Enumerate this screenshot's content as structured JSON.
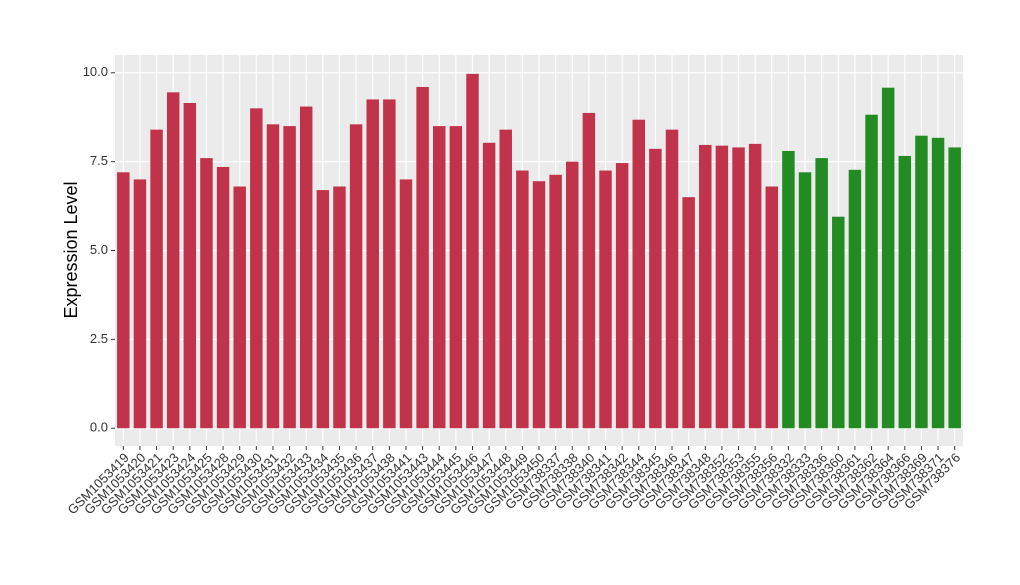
{
  "chart_data": {
    "type": "bar",
    "y_label": "Expression Level",
    "categories": [
      "GSM1053419",
      "GSM1053420",
      "GSM1053421",
      "GSM1053423",
      "GSM1053424",
      "GSM1053425",
      "GSM1053428",
      "GSM1053429",
      "GSM1053430",
      "GSM1053431",
      "GSM1053432",
      "GSM1053433",
      "GSM1053434",
      "GSM1053435",
      "GSM1053436",
      "GSM1053437",
      "GSM1053438",
      "GSM1053441",
      "GSM1053443",
      "GSM1053444",
      "GSM1053445",
      "GSM1053446",
      "GSM1053447",
      "GSM1053448",
      "GSM1053449",
      "GSM1053450",
      "GSM738337",
      "GSM738338",
      "GSM738340",
      "GSM738341",
      "GSM738342",
      "GSM738344",
      "GSM738345",
      "GSM738346",
      "GSM738347",
      "GSM738348",
      "GSM738352",
      "GSM738353",
      "GSM738355",
      "GSM738356",
      "GSM738332",
      "GSM738333",
      "GSM738336",
      "GSM738360",
      "GSM738361",
      "GSM738362",
      "GSM738364",
      "GSM738366",
      "GSM738369",
      "GSM738371",
      "GSM738376"
    ],
    "values": [
      7.2,
      7.0,
      8.4,
      9.45,
      9.15,
      7.6,
      7.35,
      6.8,
      9.0,
      8.55,
      8.5,
      9.05,
      6.7,
      6.8,
      8.55,
      9.25,
      9.25,
      7.0,
      9.6,
      8.5,
      8.5,
      9.97,
      8.03,
      8.4,
      7.25,
      6.95,
      7.13,
      7.5,
      8.87,
      7.25,
      7.46,
      8.68,
      7.86,
      8.4,
      6.5,
      7.97,
      7.95,
      7.9,
      8.0,
      6.8,
      7.8,
      7.2,
      7.6,
      5.95,
      7.27,
      8.82,
      9.58,
      7.66,
      8.23,
      8.17,
      7.9
    ],
    "colors": [
      "#c1334a",
      "#c1334a",
      "#c1334a",
      "#c1334a",
      "#c1334a",
      "#c1334a",
      "#c1334a",
      "#c1334a",
      "#c1334a",
      "#c1334a",
      "#c1334a",
      "#c1334a",
      "#c1334a",
      "#c1334a",
      "#c1334a",
      "#c1334a",
      "#c1334a",
      "#c1334a",
      "#c1334a",
      "#c1334a",
      "#c1334a",
      "#c1334a",
      "#c1334a",
      "#c1334a",
      "#c1334a",
      "#c1334a",
      "#c1334a",
      "#c1334a",
      "#c1334a",
      "#c1334a",
      "#c1334a",
      "#c1334a",
      "#c1334a",
      "#c1334a",
      "#c1334a",
      "#c1334a",
      "#c1334a",
      "#c1334a",
      "#c1334a",
      "#c1334a",
      "#228b22",
      "#228b22",
      "#228b22",
      "#228b22",
      "#228b22",
      "#228b22",
      "#228b22",
      "#228b22",
      "#228b22",
      "#228b22",
      "#228b22"
    ],
    "ylim": [
      -0.5,
      10.5
    ],
    "yticks": [
      {
        "value": 0,
        "label": "0.0"
      },
      {
        "value": 2.5,
        "label": "2.5"
      },
      {
        "value": 5,
        "label": "5.0"
      },
      {
        "value": 7.5,
        "label": "7.5"
      },
      {
        "value": 10,
        "label": "10.0"
      }
    ],
    "grid": true
  }
}
